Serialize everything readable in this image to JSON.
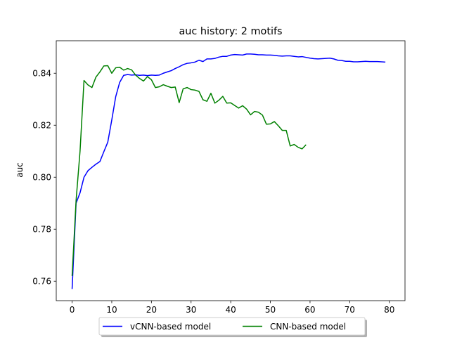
{
  "chart_data": {
    "type": "line",
    "title": "auc history:  2 motifs",
    "xlabel": "",
    "ylabel": "auc",
    "xlim": [
      -4,
      83.95
    ],
    "ylim": [
      0.7525,
      0.8525
    ],
    "xticks": [
      0,
      10,
      20,
      30,
      40,
      50,
      60,
      70,
      80
    ],
    "yticks": [
      0.76,
      0.78,
      0.8,
      0.82,
      0.84
    ],
    "ytick_labels": [
      "0.76",
      "0.78",
      "0.80",
      "0.82",
      "0.84"
    ],
    "grid": false,
    "legend": {
      "placement": "bottom-center, below plot",
      "columns": 2
    },
    "series": [
      {
        "name": "vCNN-based model",
        "color": "#0000ff",
        "x": [
          0,
          1,
          2,
          3,
          4,
          5,
          6,
          7,
          8,
          9,
          10,
          11,
          12,
          13,
          14,
          15,
          16,
          17,
          18,
          19,
          20,
          21,
          22,
          23,
          24,
          25,
          26,
          27,
          28,
          29,
          30,
          31,
          32,
          33,
          34,
          35,
          36,
          37,
          38,
          39,
          40,
          41,
          42,
          43,
          44,
          45,
          46,
          47,
          48,
          49,
          50,
          51,
          52,
          53,
          54,
          55,
          56,
          57,
          58,
          59,
          60,
          61,
          62,
          63,
          64,
          65,
          66,
          67,
          68,
          69,
          70,
          71,
          72,
          73,
          74,
          75,
          76,
          77,
          78,
          79
        ],
        "y": [
          0.757,
          0.79,
          0.794,
          0.8,
          0.8025,
          0.8038,
          0.805,
          0.806,
          0.8098,
          0.8135,
          0.822,
          0.831,
          0.8365,
          0.8392,
          0.8395,
          0.8393,
          0.8394,
          0.8392,
          0.8393,
          0.8391,
          0.8393,
          0.8392,
          0.8393,
          0.84,
          0.8405,
          0.841,
          0.8418,
          0.8425,
          0.8433,
          0.8438,
          0.844,
          0.8443,
          0.845,
          0.8445,
          0.8455,
          0.8455,
          0.8457,
          0.8462,
          0.8465,
          0.8465,
          0.847,
          0.8472,
          0.8471,
          0.847,
          0.8474,
          0.8474,
          0.8473,
          0.8471,
          0.8471,
          0.847,
          0.847,
          0.8469,
          0.8467,
          0.8466,
          0.8467,
          0.8467,
          0.8465,
          0.8463,
          0.8464,
          0.8461,
          0.8458,
          0.8456,
          0.8455,
          0.8456,
          0.8457,
          0.8458,
          0.8455,
          0.845,
          0.8449,
          0.8446,
          0.8446,
          0.8444,
          0.8444,
          0.8445,
          0.8446,
          0.8445,
          0.8445,
          0.8445,
          0.8444,
          0.8443
        ]
      },
      {
        "name": "CNN-based model",
        "color": "#008000",
        "x": [
          0,
          1,
          2,
          3,
          4,
          5,
          6,
          7,
          8,
          9,
          10,
          11,
          12,
          13,
          14,
          15,
          16,
          17,
          18,
          19,
          20,
          21,
          22,
          23,
          24,
          25,
          26,
          27,
          28,
          29,
          30,
          31,
          32,
          33,
          34,
          35,
          36,
          37,
          38,
          39,
          40,
          41,
          42,
          43,
          44,
          45,
          46,
          47,
          48,
          49,
          50,
          51,
          52,
          53,
          54,
          55,
          56,
          57,
          58,
          59
        ],
        "y": [
          0.762,
          0.791,
          0.81,
          0.8372,
          0.8355,
          0.8345,
          0.8385,
          0.8405,
          0.8428,
          0.8429,
          0.84,
          0.8421,
          0.8423,
          0.8412,
          0.8418,
          0.8413,
          0.8393,
          0.838,
          0.837,
          0.8387,
          0.8375,
          0.8345,
          0.8348,
          0.8356,
          0.835,
          0.8345,
          0.8347,
          0.8287,
          0.834,
          0.8345,
          0.8337,
          0.8335,
          0.833,
          0.8298,
          0.8292,
          0.8323,
          0.8285,
          0.8296,
          0.8311,
          0.8285,
          0.8286,
          0.8276,
          0.8266,
          0.8275,
          0.8262,
          0.824,
          0.8253,
          0.825,
          0.8239,
          0.8204,
          0.8205,
          0.8214,
          0.8198,
          0.818,
          0.818,
          0.812,
          0.8126,
          0.8115,
          0.8109,
          0.8125
        ]
      }
    ]
  }
}
